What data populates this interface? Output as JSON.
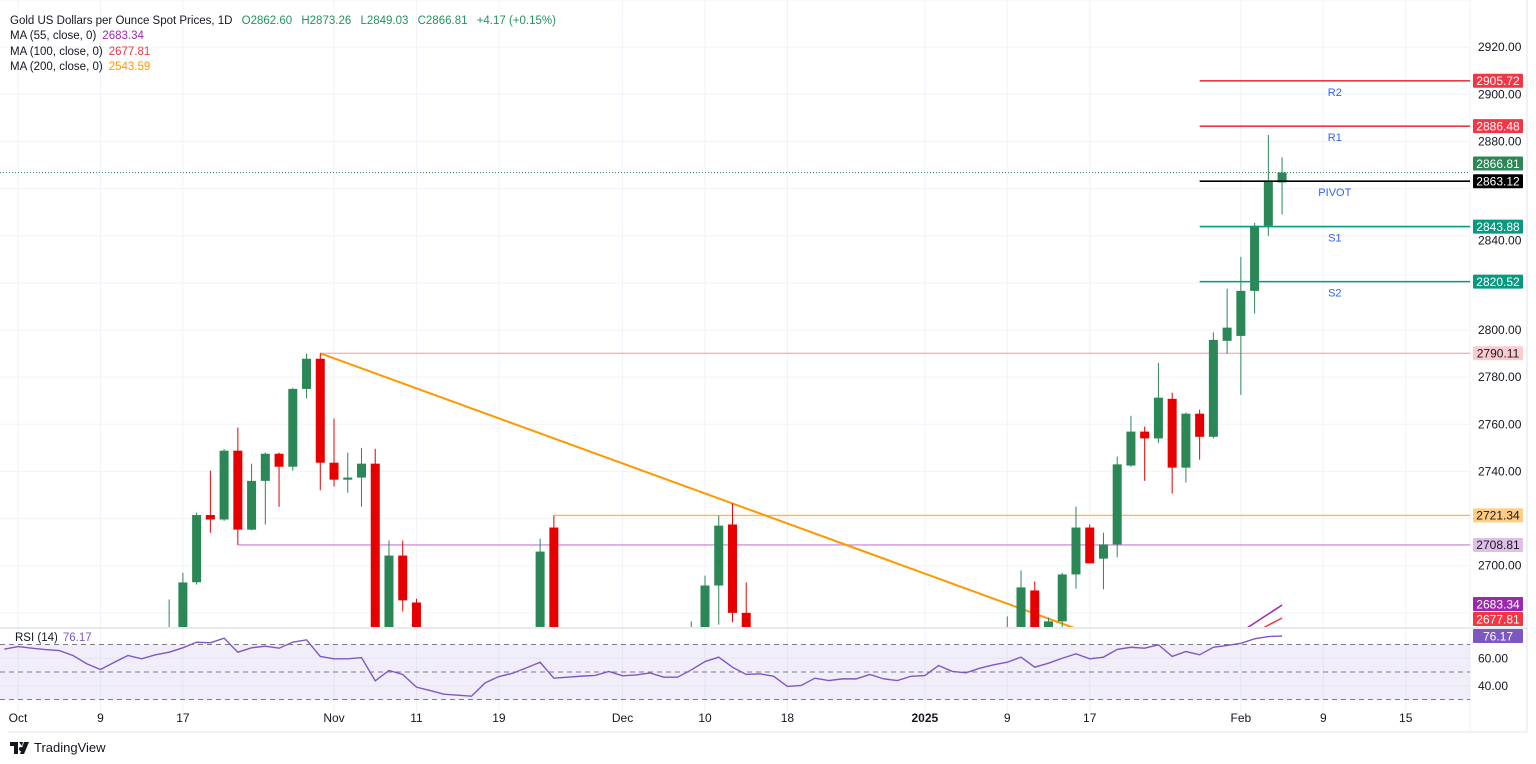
{
  "header": {
    "title": "Gold US Dollars per Ounce Spot Prices, 1D",
    "open": "O2862.60",
    "high": "H2873.26",
    "low": "L2849.03",
    "close": "C2866.81",
    "change": "+4.17 (+0.15%)",
    "ma_legends": [
      {
        "label": "MA (55, close, 0)",
        "value": "2683.34",
        "color": "#9c27b0"
      },
      {
        "label": "MA (100, close, 0)",
        "value": "2677.81",
        "color": "#f23645"
      },
      {
        "label": "MA (200, close, 0)",
        "value": "2543.59",
        "color": "#ff9800"
      }
    ]
  },
  "branding": {
    "logo_text": "TradingView"
  },
  "chart_data": {
    "type": "candlestick",
    "timeframe": "1D",
    "colors": {
      "up": "#2b8756",
      "down": "#e60000",
      "grid": "#f0f3fa",
      "rsi": "#7e57c2"
    },
    "ylim": [
      2674,
      2940
    ],
    "grid": true,
    "price_ticks": [
      "2920.00",
      "2900.00",
      "2880.00",
      "2840.00",
      "2800.00",
      "2780.00",
      "2760.00",
      "2740.00",
      "2700.00"
    ],
    "time_labels": [
      {
        "date": "2024-10-01",
        "label": "Oct",
        "bold": false
      },
      {
        "date": "2024-10-09",
        "label": "9",
        "bold": false
      },
      {
        "date": "2024-10-17",
        "label": "17",
        "bold": false
      },
      {
        "date": "2024-11-01",
        "label": "Nov",
        "bold": false
      },
      {
        "date": "2024-11-11",
        "label": "11",
        "bold": false
      },
      {
        "date": "2024-11-19",
        "label": "19",
        "bold": false
      },
      {
        "date": "2024-12-02",
        "label": "Dec",
        "bold": false
      },
      {
        "date": "2024-12-10",
        "label": "10",
        "bold": false
      },
      {
        "date": "2024-12-18",
        "label": "18",
        "bold": false
      },
      {
        "date": "2025-01-01",
        "label": "2025",
        "bold": true
      },
      {
        "date": "2025-01-09",
        "label": "9",
        "bold": false
      },
      {
        "date": "2025-01-17",
        "label": "17",
        "bold": false
      },
      {
        "date": "2025-02-03",
        "label": "Feb",
        "bold": false
      },
      {
        "date": "2025-02-09",
        "label": "9",
        "bold": false
      },
      {
        "date": "2025-02-15",
        "label": "15",
        "bold": false
      }
    ],
    "candles": [
      {
        "date": "2024-10-16",
        "o": 2662,
        "h": 2685.7,
        "l": 2655,
        "c": 2672
      },
      {
        "date": "2024-10-17",
        "o": 2672,
        "h": 2697,
        "l": 2668,
        "c": 2692.9
      },
      {
        "date": "2024-10-18",
        "o": 2693,
        "h": 2722.5,
        "l": 2692,
        "c": 2721.5
      },
      {
        "date": "2024-10-21",
        "o": 2721.5,
        "h": 2740.3,
        "l": 2714,
        "c": 2719.6
      },
      {
        "date": "2024-10-22",
        "o": 2719.6,
        "h": 2749.5,
        "l": 2719,
        "c": 2748.8
      },
      {
        "date": "2024-10-23",
        "o": 2748.8,
        "h": 2758.6,
        "l": 2708.81,
        "c": 2715.3
      },
      {
        "date": "2024-10-24",
        "o": 2715.3,
        "h": 2743.3,
        "l": 2715,
        "c": 2736
      },
      {
        "date": "2024-10-25",
        "o": 2736,
        "h": 2748,
        "l": 2717.5,
        "c": 2747.5
      },
      {
        "date": "2024-10-28",
        "o": 2747.5,
        "h": 2748,
        "l": 2725,
        "c": 2742
      },
      {
        "date": "2024-10-29",
        "o": 2742,
        "h": 2775.5,
        "l": 2740.3,
        "c": 2775
      },
      {
        "date": "2024-10-30",
        "o": 2775,
        "h": 2790,
        "l": 2771,
        "c": 2787.8
      },
      {
        "date": "2024-10-31",
        "o": 2787.8,
        "h": 2790.11,
        "l": 2732,
        "c": 2743.7
      },
      {
        "date": "2024-11-01",
        "o": 2743.7,
        "h": 2762.4,
        "l": 2733.6,
        "c": 2736.5
      },
      {
        "date": "2024-11-04",
        "o": 2736.5,
        "h": 2748,
        "l": 2731,
        "c": 2737.4
      },
      {
        "date": "2024-11-05",
        "o": 2737.4,
        "h": 2750,
        "l": 2725,
        "c": 2743.3
      },
      {
        "date": "2024-11-06",
        "o": 2743.3,
        "h": 2749.6,
        "l": 2652,
        "c": 2659
      },
      {
        "date": "2024-11-07",
        "o": 2659,
        "h": 2710.7,
        "l": 2652,
        "c": 2704.3
      },
      {
        "date": "2024-11-08",
        "o": 2704.3,
        "h": 2710.7,
        "l": 2680.6,
        "c": 2685.3
      },
      {
        "date": "2024-11-11",
        "o": 2684.4,
        "h": 2686,
        "l": 2610,
        "c": 2618
      },
      {
        "date": "2024-11-22",
        "o": 2672,
        "h": 2711.5,
        "l": 2668,
        "c": 2706
      },
      {
        "date": "2024-11-25",
        "o": 2716.2,
        "h": 2721.34,
        "l": 2615,
        "c": 2625
      },
      {
        "date": "2024-12-09",
        "o": 2640,
        "h": 2676.4,
        "l": 2632,
        "c": 2660
      },
      {
        "date": "2024-12-10",
        "o": 2660,
        "h": 2695.8,
        "l": 2655,
        "c": 2691.6
      },
      {
        "date": "2024-12-11",
        "o": 2691.6,
        "h": 2721.3,
        "l": 2675,
        "c": 2717
      },
      {
        "date": "2024-12-12",
        "o": 2717.5,
        "h": 2726.4,
        "l": 2676,
        "c": 2680
      },
      {
        "date": "2024-12-13",
        "o": 2680,
        "h": 2692.9,
        "l": 2642,
        "c": 2648
      },
      {
        "date": "2025-01-09",
        "o": 2664,
        "h": 2678.5,
        "l": 2658,
        "c": 2670
      },
      {
        "date": "2025-01-10",
        "o": 2670,
        "h": 2698,
        "l": 2665,
        "c": 2690.8
      },
      {
        "date": "2025-01-13",
        "o": 2689.5,
        "h": 2693.3,
        "l": 2657,
        "c": 2662
      },
      {
        "date": "2025-01-14",
        "o": 2662,
        "h": 2678,
        "l": 2655,
        "c": 2676.4
      },
      {
        "date": "2025-01-15",
        "o": 2676.4,
        "h": 2697,
        "l": 2673,
        "c": 2696.3
      },
      {
        "date": "2025-01-16",
        "o": 2696.3,
        "h": 2725.1,
        "l": 2690.3,
        "c": 2716.2
      },
      {
        "date": "2025-01-17",
        "o": 2716.2,
        "h": 2717.5,
        "l": 2701,
        "c": 2701
      },
      {
        "date": "2025-01-20",
        "o": 2703,
        "h": 2714,
        "l": 2690,
        "c": 2709
      },
      {
        "date": "2025-01-21",
        "o": 2709,
        "h": 2746.3,
        "l": 2703.5,
        "c": 2743
      },
      {
        "date": "2025-01-22",
        "o": 2742.5,
        "h": 2763.6,
        "l": 2742,
        "c": 2756.9
      },
      {
        "date": "2025-01-23",
        "o": 2756.9,
        "h": 2759,
        "l": 2736,
        "c": 2754
      },
      {
        "date": "2025-01-24",
        "o": 2754,
        "h": 2786,
        "l": 2752,
        "c": 2771.3
      },
      {
        "date": "2025-01-27",
        "o": 2770.8,
        "h": 2773.4,
        "l": 2730.6,
        "c": 2741.6
      },
      {
        "date": "2025-01-28",
        "o": 2741.6,
        "h": 2765,
        "l": 2735.3,
        "c": 2764.5
      },
      {
        "date": "2025-01-29",
        "o": 2764.5,
        "h": 2766.2,
        "l": 2745,
        "c": 2754.7
      },
      {
        "date": "2025-01-30",
        "o": 2754.7,
        "h": 2799,
        "l": 2754,
        "c": 2795.8
      },
      {
        "date": "2025-01-31",
        "o": 2795.4,
        "h": 2817.5,
        "l": 2790,
        "c": 2801
      },
      {
        "date": "2025-02-03",
        "o": 2797.5,
        "h": 2831,
        "l": 2772.5,
        "c": 2816.6
      },
      {
        "date": "2025-02-04",
        "o": 2816.6,
        "h": 2845.4,
        "l": 2807,
        "c": 2844.2
      },
      {
        "date": "2025-02-05",
        "o": 2844.2,
        "h": 2882.7,
        "l": 2840,
        "c": 2862.8
      },
      {
        "date": "2025-02-06",
        "o": 2862.6,
        "h": 2873.26,
        "l": 2849.03,
        "c": 2866.81
      }
    ],
    "moving_averages": [
      {
        "period": 55,
        "color": "#9c27b0",
        "badge": "2683.34",
        "points": [
          {
            "date": "2025-02-03",
            "v": 2671.9
          },
          {
            "date": "2025-02-04",
            "v": 2675.7
          },
          {
            "date": "2025-02-05",
            "v": 2679.5
          },
          {
            "date": "2025-02-06",
            "v": 2683.34
          }
        ]
      },
      {
        "period": 100,
        "color": "#f23645",
        "badge": "2677.81",
        "points": [
          {
            "date": "2025-02-03",
            "v": 2668.5
          },
          {
            "date": "2025-02-04",
            "v": 2671.5
          },
          {
            "date": "2025-02-05",
            "v": 2674.8
          },
          {
            "date": "2025-02-06",
            "v": 2677.81
          }
        ]
      }
    ],
    "last_price": {
      "value": 2866.81,
      "label": "2866.81",
      "color": "#2b8756"
    },
    "pivots": {
      "start_date": "2025-01-29",
      "levels": [
        {
          "name": "R2",
          "value": 2905.72,
          "label": "2905.72",
          "color": "#f23645"
        },
        {
          "name": "R1",
          "value": 2886.48,
          "label": "2886.48",
          "color": "#f23645"
        },
        {
          "name": "PIVOT",
          "value": 2863.12,
          "label": "2863.12",
          "color": "#000000"
        },
        {
          "name": "S1",
          "value": 2843.88,
          "label": "2843.88",
          "color": "#089981"
        },
        {
          "name": "S2",
          "value": 2820.52,
          "label": "2820.52",
          "color": "#089981"
        }
      ],
      "text_color": "#2962ff"
    },
    "horizontal_lines": [
      {
        "value": 2790.11,
        "label": "2790.11",
        "from": "2024-10-31",
        "color": "#f7b4b6",
        "badge_bg": "#fccbcd"
      },
      {
        "value": 2721.34,
        "label": "2721.34",
        "from": "2024-11-25",
        "color": "#ffb74d",
        "badge_bg": "#ffcc80"
      },
      {
        "value": 2708.81,
        "label": "2708.81",
        "from": "2024-10-23",
        "color": "#ce93d8",
        "badge_bg": "#e1bee7"
      }
    ],
    "trendline": {
      "color": "#ff9800",
      "points": [
        {
          "date": "2024-10-31",
          "v": 2790.11
        },
        {
          "date": "2024-12-12",
          "v": 2726.4
        }
      ],
      "extend_to": "2025-01-16"
    },
    "rsi": {
      "label": "RSI (14)",
      "value": "76.17",
      "bands": [
        70,
        50,
        30
      ],
      "ticks": [
        "60.00",
        "40.00"
      ],
      "start_date": "2024-09-30",
      "values": [
        66.6,
        68.5,
        67.3,
        66.3,
        65.6,
        62,
        56,
        51.8,
        57,
        62,
        59.6,
        62.5,
        64.4,
        67.6,
        71.7,
        71.2,
        74.6,
        64.4,
        67.6,
        68.8,
        67.3,
        71.7,
        73.4,
        61.3,
        59.6,
        59.6,
        60.5,
        43.6,
        51.1,
        48.2,
        39,
        36.5,
        33.9,
        33.1,
        32.4,
        42.1,
        46.7,
        49.1,
        53,
        57.1,
        45.5,
        46.2,
        47,
        47.5,
        50.4,
        47.2,
        47.9,
        49.3,
        46.2,
        46.2,
        51.5,
        57.6,
        60.8,
        53.5,
        48.2,
        48.7,
        46.9,
        39.5,
        40.2,
        45.5,
        43.8,
        45,
        45,
        48.2,
        45,
        43.8,
        46.9,
        47.4,
        54.7,
        50.4,
        49.4,
        52.8,
        55.2,
        57.1,
        60.8,
        53.5,
        56.4,
        60,
        63.2,
        59.6,
        60.8,
        66.4,
        68,
        67.3,
        69.8,
        61.3,
        64.9,
        62.5,
        68,
        69.3,
        70.9,
        74.1,
        75.8,
        76.17
      ]
    }
  }
}
